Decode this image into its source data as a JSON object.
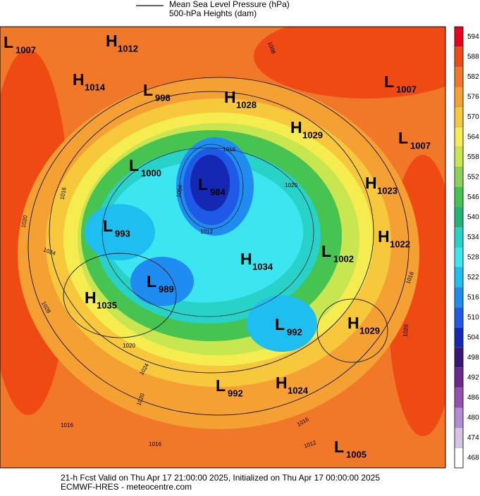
{
  "legend": {
    "line_label": "Mean Sea Level Pressure (hPa)",
    "fill_label": "500-hPa Heights (dam)"
  },
  "colorbar": {
    "levels": [
      594,
      588,
      582,
      576,
      570,
      564,
      558,
      552,
      546,
      540,
      534,
      528,
      522,
      516,
      510,
      504,
      498,
      492,
      486,
      480,
      474,
      468
    ],
    "colors": [
      "#e8001e",
      "#f04a14",
      "#f07828",
      "#f5a032",
      "#f7c83c",
      "#f5ec50",
      "#c8e650",
      "#8cd25a",
      "#46c350",
      "#23b478",
      "#28d2c8",
      "#3ce6f0",
      "#1ebef0",
      "#1e8cf0",
      "#1e5ae6",
      "#1428b4",
      "#3c1478",
      "#6e288c",
      "#9650b4",
      "#b48cd2",
      "#d7c3e6",
      "#ffffff"
    ]
  },
  "systems": [
    {
      "type": "L",
      "value": 1007
    },
    {
      "type": "H",
      "value": 1012
    },
    {
      "type": "H",
      "value": 1014
    },
    {
      "type": "L",
      "value": 998
    },
    {
      "type": "H",
      "value": 1028
    },
    {
      "type": "L",
      "value": 1007
    },
    {
      "type": "H",
      "value": 1029
    },
    {
      "type": "L",
      "value": 1007
    },
    {
      "type": "L",
      "value": 1000
    },
    {
      "type": "L",
      "value": 984
    },
    {
      "type": "H",
      "value": 1023
    },
    {
      "type": "L",
      "value": 993
    },
    {
      "type": "H",
      "value": 1022
    },
    {
      "type": "L",
      "value": 1002
    },
    {
      "type": "H",
      "value": 1034
    },
    {
      "type": "L",
      "value": 989
    },
    {
      "type": "H",
      "value": 1035
    },
    {
      "type": "L",
      "value": 992
    },
    {
      "type": "H",
      "value": 1029
    },
    {
      "type": "L",
      "value": 992
    },
    {
      "type": "H",
      "value": 1024
    },
    {
      "type": "L",
      "value": 1005
    }
  ],
  "contour_labels": [
    1008,
    1016,
    1020,
    1012,
    1004,
    1016,
    1020,
    1024,
    1028,
    1020,
    1024,
    1020,
    1016,
    1016,
    1012,
    1016,
    1020,
    1016
  ],
  "footer": {
    "valid": "21-h Fcst Valid on Thu Apr 17 21:00:00 2025, Initialized on Thu Apr 17 00:00:00 2025",
    "source": "ECMWF-HRES - meteocentre.com"
  }
}
